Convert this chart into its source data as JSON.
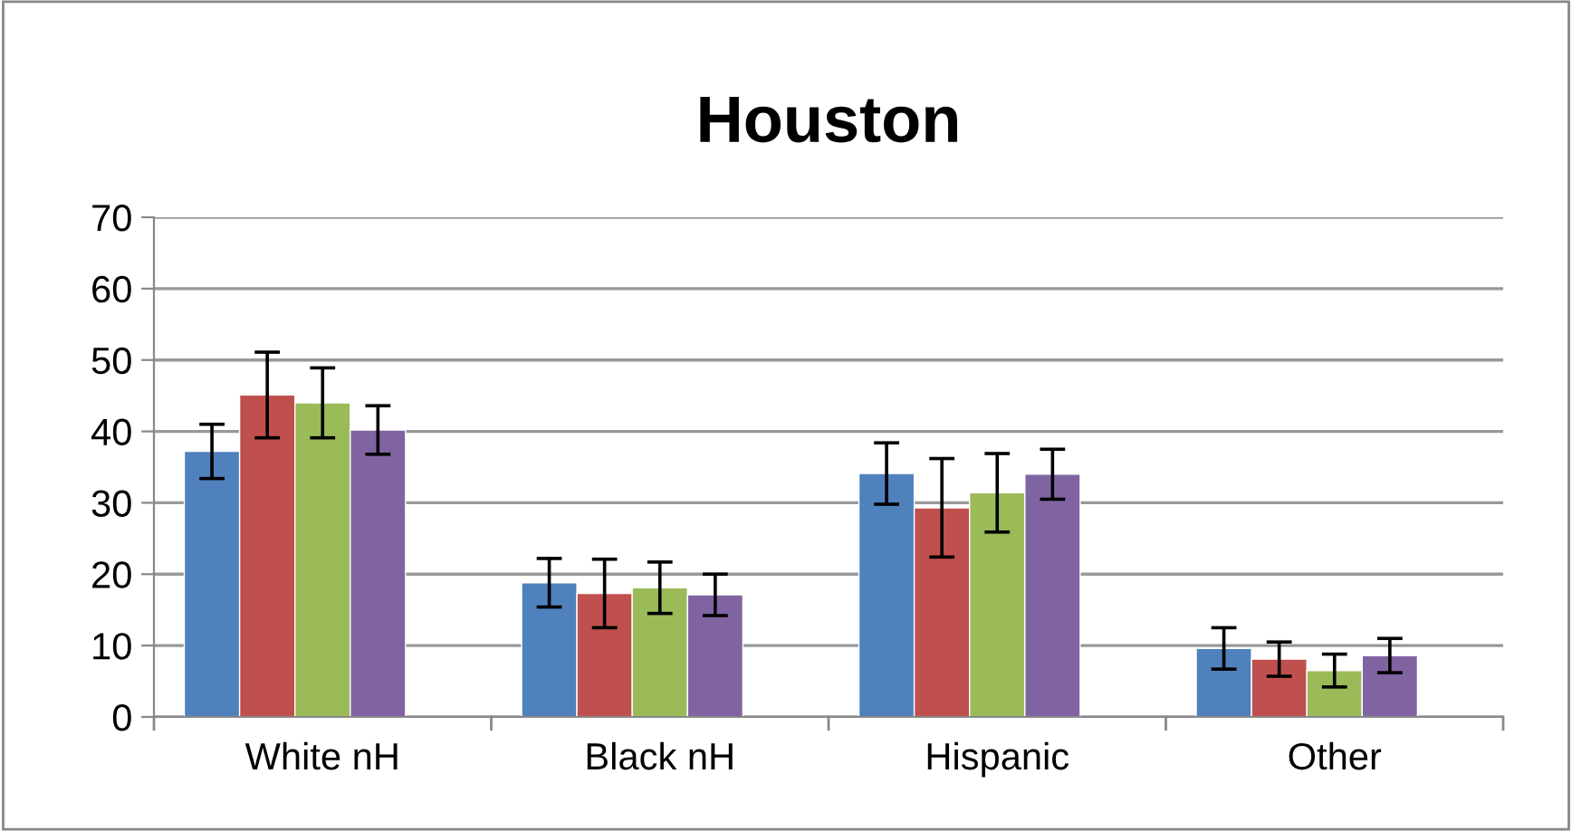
{
  "chart_data": {
    "type": "bar",
    "title": "Houston",
    "categories": [
      "White nH",
      "Black nH",
      "Hispanic",
      "Other"
    ],
    "series": [
      {
        "color": "#4f81bd",
        "values": [
          37.2,
          18.8,
          34.1,
          9.6
        ],
        "errors": [
          3.8,
          3.4,
          4.3,
          2.9
        ]
      },
      {
        "color": "#c0504d",
        "values": [
          45.1,
          17.3,
          29.3,
          8.1
        ],
        "errors": [
          6.0,
          4.8,
          6.9,
          2.4
        ]
      },
      {
        "color": "#9bbb59",
        "values": [
          44.0,
          18.1,
          31.4,
          6.5
        ],
        "errors": [
          4.9,
          3.6,
          5.5,
          2.3
        ]
      },
      {
        "color": "#8064a2",
        "values": [
          40.2,
          17.1,
          34.0,
          8.6
        ],
        "errors": [
          3.4,
          2.9,
          3.5,
          2.4
        ]
      }
    ],
    "ylim": [
      0,
      70
    ],
    "yticks": [
      0,
      10,
      20,
      30,
      40,
      50,
      60,
      70
    ],
    "grid": "y"
  }
}
